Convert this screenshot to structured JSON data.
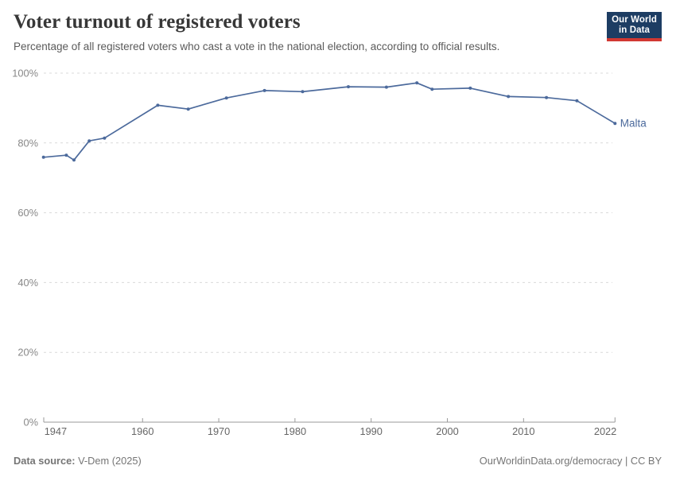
{
  "header": {
    "title": "Voter turnout of registered voters",
    "subtitle": "Percentage of all registered voters who cast a vote in the national election, according to official results.",
    "logo": {
      "line1": "Our World",
      "line2": "in Data"
    }
  },
  "footer": {
    "source_label": "Data source:",
    "source_value": " V-Dem (2025)",
    "credit": "OurWorldinData.org/democracy | CC BY"
  },
  "colors": {
    "line": "#4c6a9c",
    "grid": "#d9d9d9",
    "axis": "#9a9a9a",
    "logo_navy": "#1d3d63",
    "logo_red": "#d13832"
  },
  "chart_data": {
    "type": "line",
    "title": "Voter turnout of registered voters",
    "subtitle": "Percentage of all registered voters who cast a vote in the national election, according to official results.",
    "xlabel": "",
    "ylabel": "",
    "xlim": [
      1947,
      2022
    ],
    "ylim": [
      0,
      100
    ],
    "grid": "horizontal-dashed",
    "legend_position": "end-of-line-label",
    "x_ticks": [
      1947,
      1960,
      1970,
      1980,
      1990,
      2000,
      2010,
      2022
    ],
    "y_ticks": [
      0,
      20,
      40,
      60,
      80,
      100
    ],
    "y_tick_suffix": "%",
    "series": [
      {
        "name": "Malta",
        "color": "#4c6a9c",
        "x": [
          1947,
          1950,
          1951,
          1953,
          1955,
          1962,
          1966,
          1971,
          1976,
          1981,
          1987,
          1992,
          1996,
          1998,
          2003,
          2008,
          2013,
          2017,
          2022
        ],
        "values": [
          75.9,
          76.5,
          75.1,
          80.6,
          81.4,
          90.8,
          89.7,
          92.9,
          95.0,
          94.7,
          96.1,
          96.0,
          97.2,
          95.4,
          95.7,
          93.3,
          93.0,
          92.1,
          85.6
        ]
      }
    ]
  }
}
